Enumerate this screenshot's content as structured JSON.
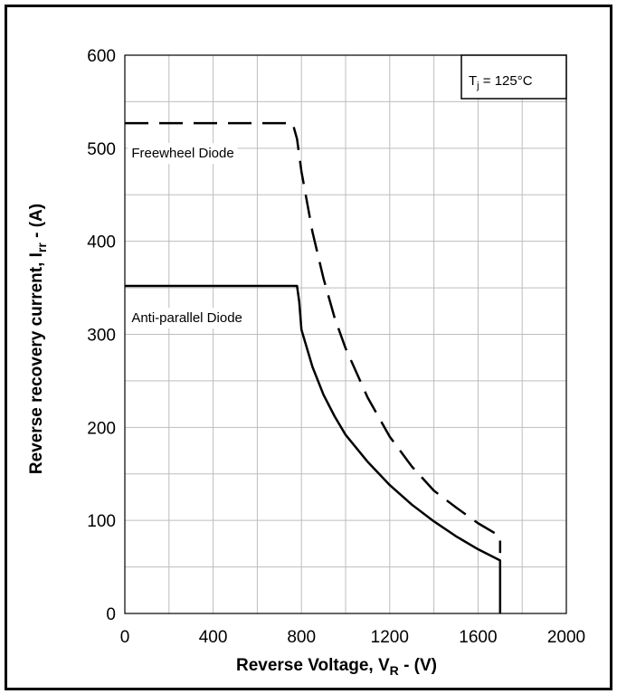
{
  "chart_data": {
    "type": "line",
    "title": "",
    "xlabel": {
      "main": "Reverse Voltage, V",
      "sub": "R",
      "tail": " - (V)"
    },
    "ylabel": {
      "main": "Reverse recovery current, I",
      "sub": "rr",
      "tail": " - (A)"
    },
    "xlim": [
      0,
      2000
    ],
    "ylim": [
      0,
      600
    ],
    "x_ticks": [
      0,
      400,
      800,
      1200,
      1600,
      2000
    ],
    "y_ticks": [
      0,
      100,
      200,
      300,
      400,
      500,
      600
    ],
    "x_minor_step": 200,
    "y_minor_step": 50,
    "grid": true,
    "condition_box": {
      "main": "T",
      "sub": "j",
      "tail": " = 125°C"
    },
    "series": [
      {
        "name": "Freewheel Diode",
        "style": "dashed",
        "color": "#000000",
        "x": [
          0,
          760,
          780,
          800,
          850,
          900,
          950,
          1000,
          1100,
          1200,
          1300,
          1400,
          1500,
          1600,
          1700,
          1700
        ],
        "y": [
          527,
          527,
          510,
          475,
          410,
          360,
          318,
          285,
          232,
          190,
          158,
          132,
          114,
          97,
          83,
          65
        ]
      },
      {
        "name": "Anti-parallel Diode",
        "style": "solid",
        "color": "#000000",
        "x": [
          0,
          780,
          790,
          800,
          850,
          900,
          950,
          1000,
          1100,
          1200,
          1300,
          1400,
          1500,
          1600,
          1700,
          1700
        ],
        "y": [
          352,
          352,
          335,
          305,
          265,
          235,
          212,
          192,
          163,
          138,
          117,
          99,
          83,
          69,
          57,
          0
        ]
      }
    ]
  }
}
